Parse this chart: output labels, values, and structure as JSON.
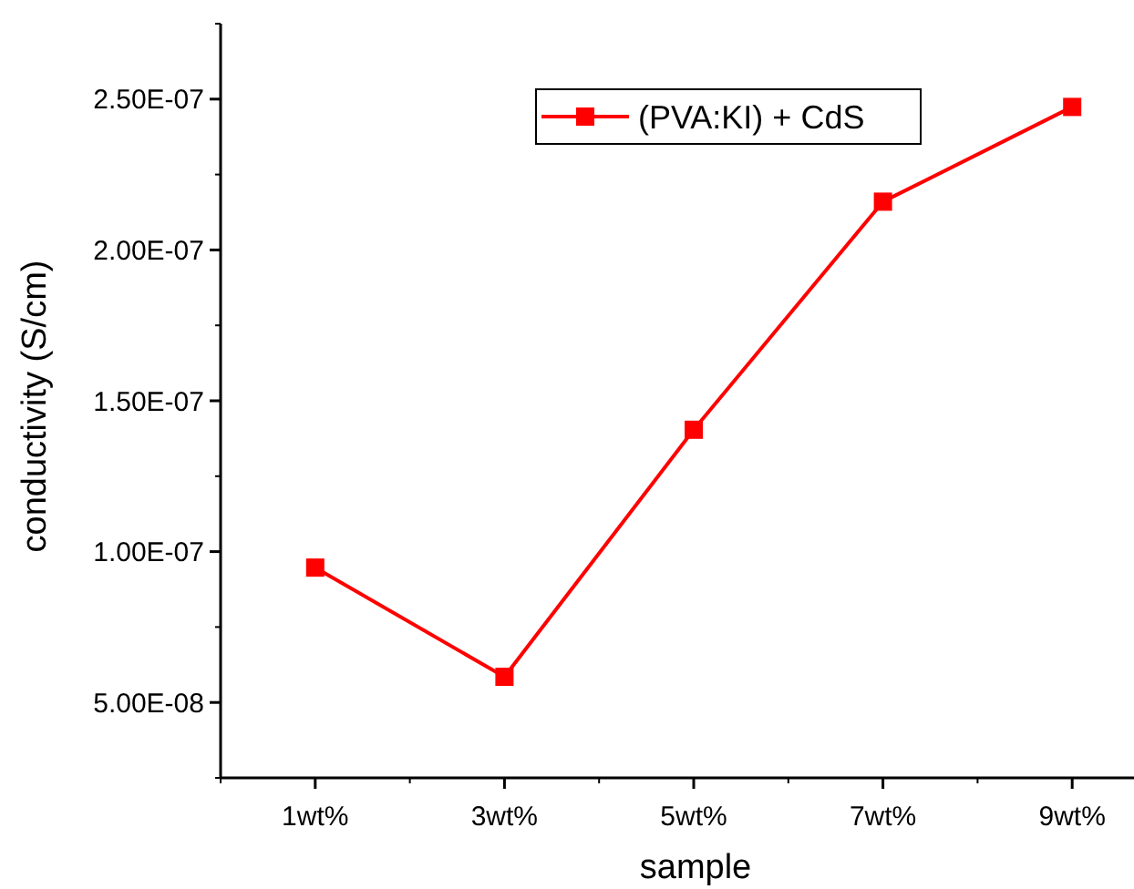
{
  "chart_data": {
    "type": "line",
    "xlabel": "sample",
    "ylabel": "conductivity (S/cm)",
    "categories": [
      "1wt%",
      "3wt%",
      "5wt%",
      "7wt%",
      "9wt%"
    ],
    "series": [
      {
        "name": "(PVA:KI) + CdS",
        "color": "#ff0000",
        "values": [
          9.47e-08,
          5.85e-08,
          1.404e-07,
          2.16e-07,
          2.474e-07
        ]
      }
    ],
    "ylim": [
      2.5e-08,
      2.75e-07
    ],
    "yticks": [
      {
        "value": 5e-08,
        "label": "5.00E-08"
      },
      {
        "value": 1e-07,
        "label": "1.00E-07"
      },
      {
        "value": 1.5e-07,
        "label": "1.50E-07"
      },
      {
        "value": 2e-07,
        "label": "2.00E-07"
      },
      {
        "value": 2.5e-07,
        "label": "2.50E-07"
      }
    ],
    "marker": "square",
    "line_style": "solid",
    "legend": "top",
    "grid": false
  }
}
